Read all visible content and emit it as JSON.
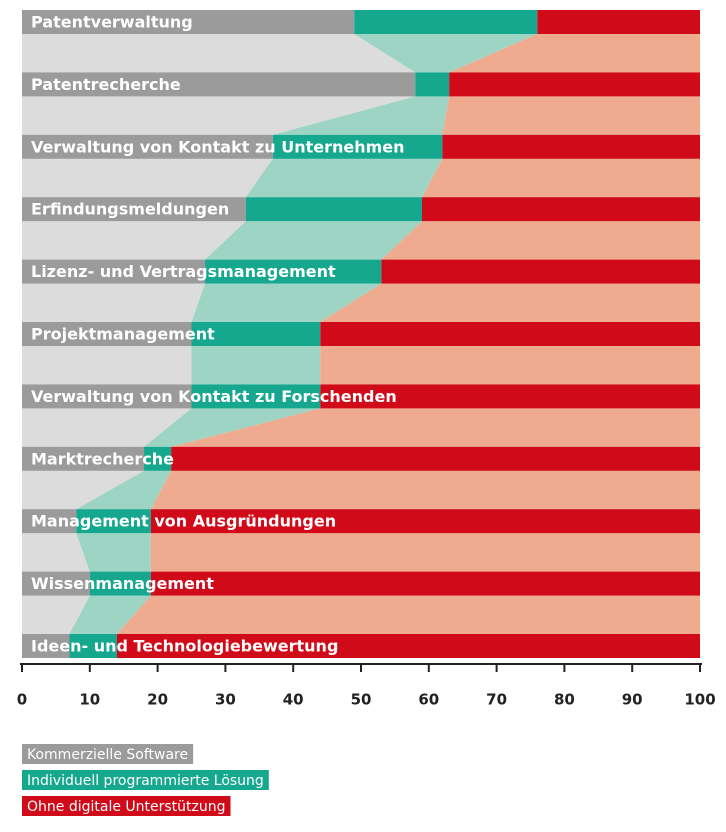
{
  "chart_data": {
    "type": "stacked-barh",
    "categories": [
      "Patentverwaltung",
      "Patentrecherche",
      "Verwaltung von Kontakt zu Unternehmen",
      "Erfindungsmeldungen",
      "Lizenz- und Vertragsmanagement",
      "Projektmanagement",
      "Verwaltung von Kontakt zu Forschenden",
      "Marktrecherche",
      "Management von Ausgründungen",
      "Wissenmanagement",
      "Ideen- und Technologiebewertung"
    ],
    "series": [
      {
        "name": "Kommerzielle Software",
        "color": "#9b9b9b",
        "band_color": "#dcdcdc",
        "values": [
          49,
          58,
          37,
          33,
          27,
          25,
          25,
          18,
          8,
          10,
          7
        ]
      },
      {
        "name": "Individuell programmierte Lösung",
        "color": "#15a88f",
        "band_color": "#9ed4c4",
        "values": [
          27,
          5,
          25,
          26,
          26,
          19,
          19,
          4,
          11,
          9,
          7
        ]
      },
      {
        "name": "Ohne digitale Unterstützung",
        "color": "#d10a19",
        "band_color": "#efab90",
        "values": [
          24,
          37,
          38,
          41,
          47,
          56,
          56,
          78,
          81,
          81,
          86
        ]
      }
    ],
    "xlim": [
      0,
      100
    ],
    "xticks": [
      0,
      10,
      20,
      30,
      40,
      50,
      60,
      70,
      80,
      90,
      100
    ]
  }
}
